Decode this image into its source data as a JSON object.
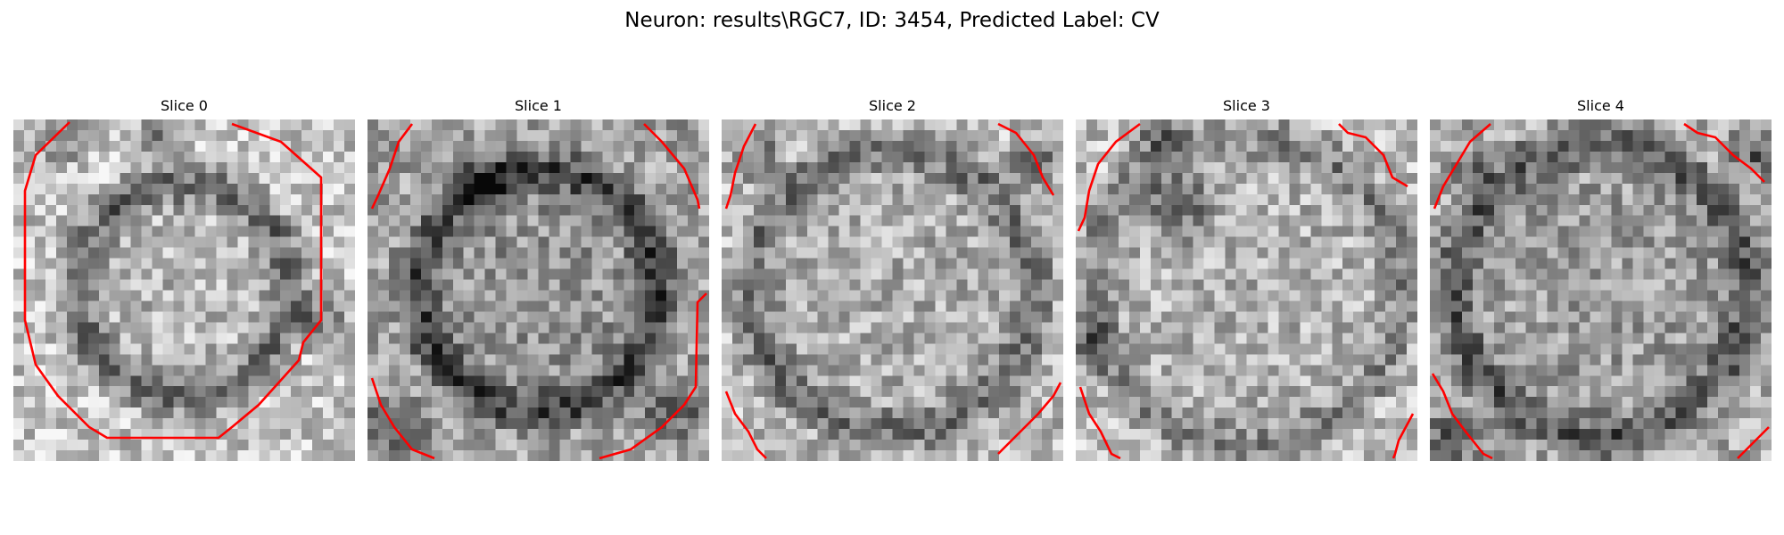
{
  "figure": {
    "title": "Neuron: results\\RGC7, ID: 3454, Predicted Label: CV"
  },
  "panels": [
    {
      "title": "Slice 0"
    },
    {
      "title": "Slice 1"
    },
    {
      "title": "Slice 2"
    },
    {
      "title": "Slice 3"
    },
    {
      "title": "Slice 4"
    }
  ],
  "colors": {
    "contour": "#ff0000",
    "background": "#ffffff"
  }
}
